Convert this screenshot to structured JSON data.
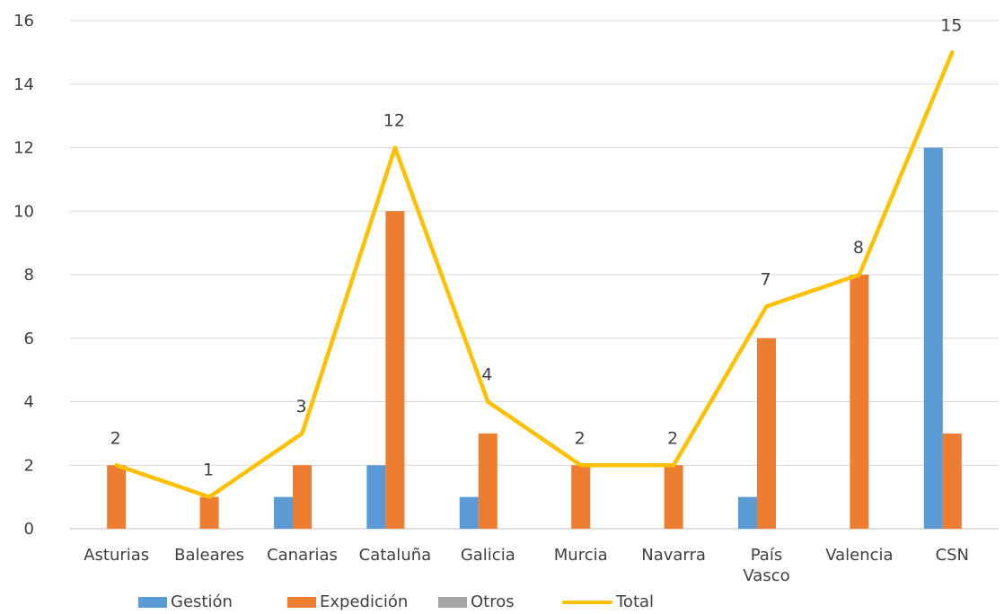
{
  "chart_data": {
    "type": "bar",
    "categories": [
      "Asturias",
      "Baleares",
      "Canarias",
      "Cataluña",
      "Galicia",
      "Murcia",
      "Navarra",
      "País Vasco",
      "Valencia",
      "CSN"
    ],
    "category_lines": [
      [
        "Asturias"
      ],
      [
        "Baleares"
      ],
      [
        "Canarias"
      ],
      [
        "Cataluña"
      ],
      [
        "Galicia"
      ],
      [
        "Murcia"
      ],
      [
        "Navarra"
      ],
      [
        "País",
        "Vasco"
      ],
      [
        "Valencia"
      ],
      [
        "CSN"
      ]
    ],
    "series": [
      {
        "name": "Gestión",
        "type": "bar",
        "color": "#5B9BD5",
        "values": [
          0,
          0,
          1,
          2,
          1,
          0,
          0,
          1,
          0,
          12
        ]
      },
      {
        "name": "Expedición",
        "type": "bar",
        "color": "#ED7D31",
        "values": [
          2,
          1,
          2,
          10,
          3,
          2,
          2,
          6,
          8,
          3
        ]
      },
      {
        "name": "Otros",
        "type": "bar",
        "color": "#A5A5A5",
        "values": [
          0,
          0,
          0,
          0,
          0,
          0,
          0,
          0,
          0,
          0
        ]
      },
      {
        "name": "Total",
        "type": "line",
        "color": "#FFC000",
        "values": [
          2,
          1,
          3,
          12,
          4,
          2,
          2,
          7,
          8,
          15
        ]
      }
    ],
    "ylim": [
      0,
      16
    ],
    "yticks": [
      0,
      2,
      4,
      6,
      8,
      10,
      12,
      14,
      16
    ],
    "grid": true,
    "legend_position": "bottom",
    "title": "",
    "xlabel": "",
    "ylabel": ""
  }
}
